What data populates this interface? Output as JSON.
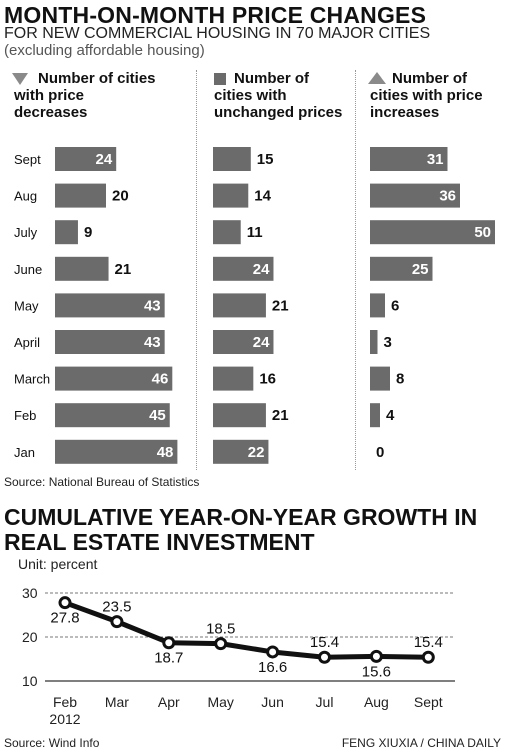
{
  "top": {
    "title": "MONTH-ON-MONTH PRICE CHANGES",
    "subtitle": "FOR NEW COMMERCIAL HOUSING IN 70 MAJOR CITIES",
    "note": "(excluding affordable housing)"
  },
  "bottom": {
    "title_line1": "CUMULATIVE YEAR-ON-YEAR GROWTH IN",
    "title_line2": "REAL ESTATE INVESTMENT",
    "unit": "Unit: percent"
  },
  "footer": {
    "source_top": "Source: National Bureau of Statistics",
    "source_bottom": "Source: Wind Info",
    "credit": "FENG XIUXIA / CHINA DAILY"
  },
  "colors": {
    "bar": "#6b6b6b",
    "triangle": "#8a8a8a",
    "line": "#111111"
  },
  "legend": {
    "decreases": {
      "line1": "Number of cities",
      "line2": "with price",
      "line3": "decreases",
      "icon": "triangle-down-icon"
    },
    "unchanged": {
      "line1": "Number of",
      "line2": "cities with",
      "line3": "unchanged prices",
      "icon": "square-icon"
    },
    "increases": {
      "line1": "Number of",
      "line2": "cities with price",
      "line3": "increases",
      "icon": "triangle-up-icon"
    }
  },
  "chart_data": [
    {
      "type": "bar",
      "orientation": "horizontal",
      "categories": [
        "Sept",
        "Aug",
        "July",
        "June",
        "May",
        "April",
        "March",
        "Feb",
        "Jan"
      ],
      "series": [
        {
          "name": "Number of cities with price decreases",
          "values": [
            24,
            20,
            9,
            21,
            43,
            43,
            46,
            45,
            48
          ]
        },
        {
          "name": "Number of cities with unchanged prices",
          "values": [
            15,
            14,
            11,
            24,
            21,
            24,
            16,
            21,
            22
          ]
        },
        {
          "name": "Number of cities with price increases",
          "values": [
            31,
            36,
            50,
            25,
            6,
            3,
            8,
            4,
            0
          ]
        }
      ]
    },
    {
      "type": "line",
      "x": [
        "Feb",
        "Mar",
        "Apr",
        "May",
        "Jun",
        "Jul",
        "Aug",
        "Sept"
      ],
      "x_sub": "2012",
      "values": [
        27.8,
        23.5,
        18.7,
        18.5,
        16.6,
        15.4,
        15.6,
        15.4
      ],
      "ylim": [
        10,
        30
      ],
      "yticks": [
        10,
        20,
        30
      ]
    }
  ]
}
